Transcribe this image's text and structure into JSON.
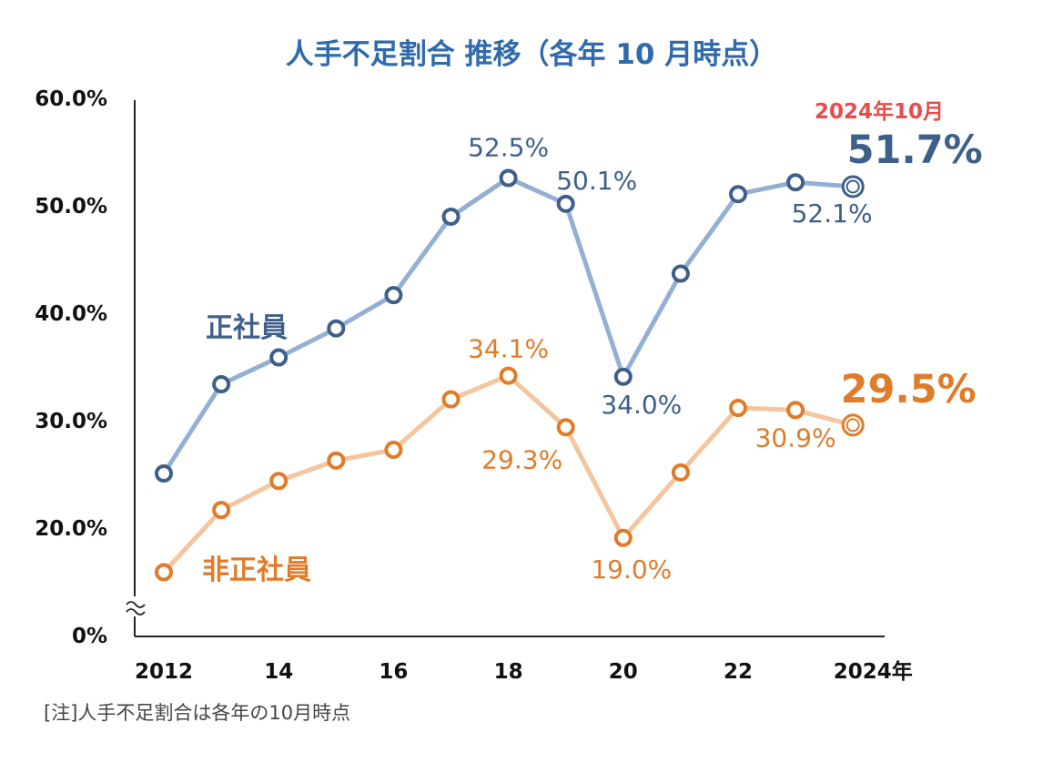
{
  "chart_data": {
    "type": "line",
    "title": "人手不足割合  推移（各年 10 月時点）",
    "x": [
      2012,
      2013,
      2014,
      2015,
      2016,
      2017,
      2018,
      2019,
      2020,
      2021,
      2022,
      2023,
      2024
    ],
    "x_tick_labels": [
      {
        "x": 2012,
        "label": "2012"
      },
      {
        "x": 2014,
        "label": "14"
      },
      {
        "x": 2016,
        "label": "16"
      },
      {
        "x": 2018,
        "label": "18"
      },
      {
        "x": 2020,
        "label": "20"
      },
      {
        "x": 2022,
        "label": "22"
      },
      {
        "x": 2024,
        "label": "2024年"
      }
    ],
    "y_tick_labels": [
      {
        "y": 0,
        "label": "0%"
      },
      {
        "y": 20,
        "label": "20.0%"
      },
      {
        "y": 30,
        "label": "30.0%"
      },
      {
        "y": 40,
        "label": "40.0%"
      },
      {
        "y": 50,
        "label": "50.0%"
      },
      {
        "y": 60,
        "label": "60.0%"
      }
    ],
    "ylim": [
      0,
      60
    ],
    "y_axis_break": "between 0% and 20%",
    "grid": false,
    "series": [
      {
        "name": "正社員",
        "line_color": "#93b0d4",
        "marker_color": "#3d5f8a",
        "label_color": "#3d5f8a",
        "values": [
          25.0,
          33.3,
          35.8,
          38.5,
          41.6,
          48.9,
          52.5,
          50.1,
          34.0,
          43.6,
          51.0,
          52.1,
          51.7
        ],
        "data_labels": [
          {
            "x": 2018,
            "text": "52.5%"
          },
          {
            "x": 2019,
            "text": "50.1%"
          },
          {
            "x": 2020,
            "text": "34.0%"
          },
          {
            "x": 2023,
            "text": "52.1%"
          },
          {
            "x": 2024,
            "text": "51.7%",
            "emphasis": true
          }
        ]
      },
      {
        "name": "非正社員",
        "line_color": "#f4c59e",
        "marker_color": "#e07b28",
        "label_color": "#e07b28",
        "values": [
          15.8,
          21.6,
          24.3,
          26.2,
          27.2,
          31.9,
          34.1,
          29.3,
          19.0,
          25.1,
          31.1,
          30.9,
          29.5
        ],
        "data_labels": [
          {
            "x": 2018,
            "text": "34.1%"
          },
          {
            "x": 2019,
            "text": "29.3%"
          },
          {
            "x": 2020,
            "text": "19.0%"
          },
          {
            "x": 2023,
            "text": "30.9%"
          },
          {
            "x": 2024,
            "text": "29.5%",
            "emphasis": true
          }
        ]
      }
    ],
    "annotation": {
      "text": "2024年10月",
      "color": "#e74c4c"
    },
    "title_color": "#2f6aab",
    "axis_color": "#222222",
    "note": "[注]人手不足割合は各年の10月時点"
  }
}
